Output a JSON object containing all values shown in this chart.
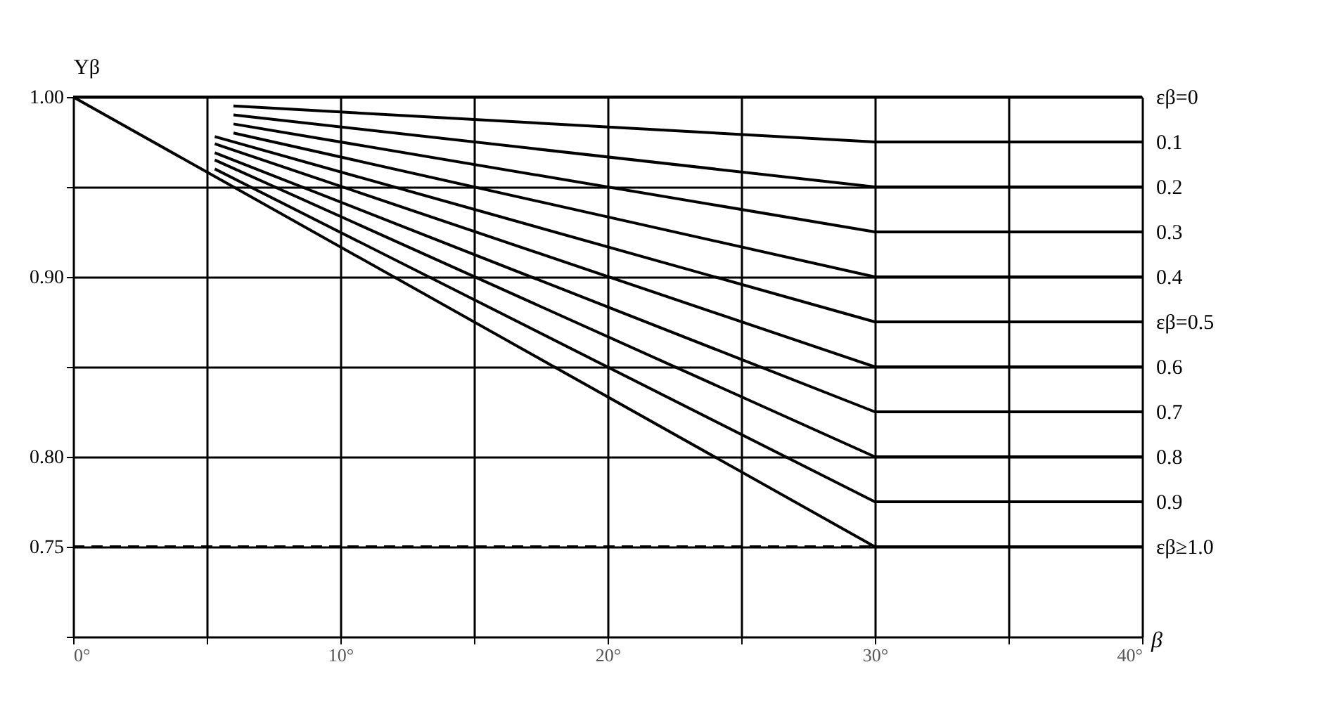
{
  "chart_data": {
    "type": "line",
    "xlabel": "β",
    "ylabel": "Yβ",
    "xlim": [
      0,
      40
    ],
    "ylim": [
      0.7,
      1.0
    ],
    "xticks": [
      {
        "value": 0,
        "label": "0°"
      },
      {
        "value": 5,
        "label": null
      },
      {
        "value": 10,
        "label": "10°"
      },
      {
        "value": 15,
        "label": null
      },
      {
        "value": 20,
        "label": "20°"
      },
      {
        "value": 25,
        "label": null
      },
      {
        "value": 30,
        "label": "30°"
      },
      {
        "value": 35,
        "label": null
      },
      {
        "value": 40,
        "label": "40°"
      }
    ],
    "yticks": [
      {
        "value": 0.7,
        "label": null
      },
      {
        "value": 0.75,
        "label": "0.75"
      },
      {
        "value": 0.8,
        "label": "0.80"
      },
      {
        "value": 0.85,
        "label": null
      },
      {
        "value": 0.9,
        "label": "0.90"
      },
      {
        "value": 0.95,
        "label": null
      },
      {
        "value": 1.0,
        "label": "1.00"
      }
    ],
    "grid": true,
    "line_style": "solid",
    "series": [
      {
        "name": "εβ=0",
        "color": "#000000",
        "x": [
          0,
          40
        ],
        "values": [
          1.0,
          1.0
        ]
      },
      {
        "name": "0.1",
        "color": "#000000",
        "x": [
          6,
          30,
          40
        ],
        "values": [
          0.995,
          0.975,
          0.975
        ]
      },
      {
        "name": "0.2",
        "color": "#000000",
        "x": [
          6,
          30,
          40
        ],
        "values": [
          0.99,
          0.95,
          0.95
        ]
      },
      {
        "name": "0.3",
        "color": "#000000",
        "x": [
          6,
          30,
          40
        ],
        "values": [
          0.985,
          0.925,
          0.925
        ]
      },
      {
        "name": "0.4",
        "color": "#000000",
        "x": [
          6,
          30,
          40
        ],
        "values": [
          0.98,
          0.9,
          0.9
        ]
      },
      {
        "name": "εβ=0.5",
        "color": "#000000",
        "x": [
          5.3,
          30,
          40
        ],
        "values": [
          0.978,
          0.875,
          0.875
        ]
      },
      {
        "name": "0.6",
        "color": "#000000",
        "x": [
          5.3,
          30,
          40
        ],
        "values": [
          0.974,
          0.85,
          0.85
        ]
      },
      {
        "name": "0.7",
        "color": "#000000",
        "x": [
          5.3,
          30,
          40
        ],
        "values": [
          0.969,
          0.825,
          0.825
        ]
      },
      {
        "name": "0.8",
        "color": "#000000",
        "x": [
          5.3,
          30,
          40
        ],
        "values": [
          0.965,
          0.8,
          0.8
        ]
      },
      {
        "name": "0.9",
        "color": "#000000",
        "x": [
          5.3,
          30,
          40
        ],
        "values": [
          0.96,
          0.775,
          0.775
        ]
      },
      {
        "name": "εβ≥1.0",
        "color": "#000000",
        "x": [
          0,
          30,
          40
        ],
        "values": [
          1.0,
          0.75,
          0.75
        ]
      },
      {
        "type": "line",
        "line_style": "dashed",
        "color": "#000000",
        "x": [
          0,
          30
        ],
        "values": [
          0.75,
          0.75
        ]
      }
    ]
  }
}
